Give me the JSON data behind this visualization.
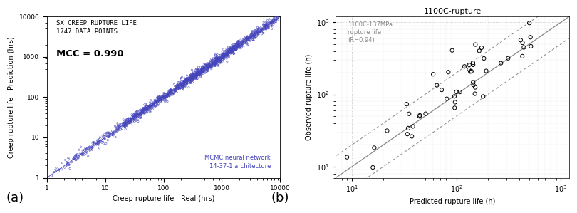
{
  "plot_a": {
    "title_text": "SX CREEP RUPTURE LIFE\n1747 DATA POINTS",
    "mcc_text": "MCC = 0.990",
    "nn_text": "MCMC neural network\n14-37-1 architecture",
    "xlabel": "Creep rupture life - Real (hrs)",
    "ylabel": "Creep rupture life - Prediction (hrs)",
    "xlim": [
      1,
      10000
    ],
    "ylim": [
      1,
      10000
    ],
    "scatter_color": "#4444bb",
    "scatter_size": 3,
    "label_a": "(a)"
  },
  "plot_b": {
    "title": "1100C-rupture",
    "xlabel": "Predicted rupture life (h)",
    "ylabel": "Observed rupture life (h)",
    "annotation": "1100C-137MPa\nrupture life\n(R=0.94)",
    "xlim": [
      7,
      1200
    ],
    "ylim": [
      7,
      1200
    ],
    "scatter_color": "#000000",
    "label_b": "(b)"
  }
}
